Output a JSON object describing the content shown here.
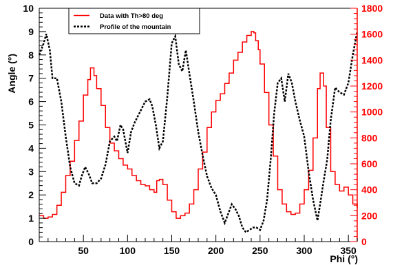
{
  "chart_data": {
    "type": "line",
    "xlabel": "Phi (°)",
    "ylabel": "Angle (°)",
    "xlim": [
      0,
      360
    ],
    "ylim": [
      0,
      10
    ],
    "y2lim": [
      0,
      1800
    ],
    "x_ticks": [
      50,
      100,
      150,
      200,
      250,
      300,
      350
    ],
    "y_ticks": [
      0,
      1,
      2,
      3,
      4,
      5,
      6,
      7,
      8,
      9,
      10
    ],
    "y2_ticks": [
      0,
      200,
      400,
      600,
      800,
      1000,
      1200,
      1400,
      1600,
      1800
    ],
    "grid": false,
    "legend_position": "top-left",
    "colors": {
      "data": "#ff0000",
      "profile": "#000000",
      "right_axis": "#ff0000"
    },
    "series": [
      {
        "name": "Data with Th>80 deg",
        "axis": "right",
        "style": "step",
        "x": [
          0,
          5,
          10,
          15,
          20,
          25,
          30,
          35,
          40,
          45,
          50,
          55,
          58,
          62,
          65,
          70,
          75,
          80,
          85,
          90,
          95,
          100,
          105,
          110,
          115,
          120,
          125,
          130,
          133,
          136,
          140,
          145,
          150,
          155,
          160,
          165,
          170,
          175,
          180,
          185,
          190,
          195,
          200,
          205,
          210,
          215,
          220,
          225,
          230,
          235,
          240,
          243,
          245,
          248,
          250,
          255,
          260,
          265,
          270,
          275,
          280,
          285,
          290,
          295,
          300,
          305,
          310,
          315,
          318,
          322,
          325,
          330,
          335,
          340,
          345,
          350,
          355,
          360
        ],
        "values": [
          200,
          180,
          190,
          210,
          280,
          380,
          510,
          620,
          780,
          930,
          1130,
          1250,
          1340,
          1280,
          1180,
          1050,
          880,
          760,
          700,
          640,
          590,
          560,
          510,
          470,
          440,
          430,
          400,
          380,
          470,
          480,
          440,
          320,
          230,
          180,
          200,
          220,
          290,
          400,
          560,
          690,
          880,
          1000,
          1090,
          1140,
          1220,
          1300,
          1400,
          1460,
          1540,
          1590,
          1620,
          1610,
          1550,
          1480,
          1370,
          1150,
          900,
          660,
          400,
          290,
          230,
          210,
          220,
          290,
          400,
          550,
          800,
          1180,
          1300,
          1200,
          880,
          540,
          440,
          390,
          420,
          360,
          290,
          260
        ]
      },
      {
        "name": "Profile of the mountain",
        "axis": "left",
        "style": "dashed",
        "x": [
          0,
          5,
          8,
          12,
          15,
          20,
          25,
          30,
          35,
          40,
          45,
          48,
          52,
          56,
          60,
          65,
          70,
          75,
          80,
          85,
          88,
          92,
          95,
          100,
          104,
          108,
          112,
          116,
          120,
          125,
          128,
          132,
          136,
          140,
          145,
          150,
          154,
          158,
          162,
          166,
          170,
          175,
          180,
          185,
          190,
          195,
          200,
          205,
          210,
          215,
          218,
          222,
          226,
          230,
          234,
          238,
          242,
          246,
          250,
          254,
          258,
          262,
          266,
          270,
          274,
          278,
          282,
          286,
          290,
          295,
          300,
          305,
          310,
          315,
          318,
          322,
          326,
          330,
          335,
          340,
          345,
          350,
          355,
          360
        ],
        "values": [
          8.0,
          8.5,
          8.9,
          8.2,
          7.0,
          7.0,
          6.0,
          4.5,
          3.2,
          2.5,
          2.4,
          2.8,
          3.2,
          2.9,
          2.5,
          2.5,
          2.7,
          3.3,
          4.3,
          4.5,
          4.3,
          5.0,
          4.8,
          3.8,
          4.7,
          5.1,
          5.4,
          5.7,
          6.0,
          6.1,
          5.8,
          5.0,
          4.0,
          4.3,
          6.2,
          8.5,
          8.8,
          7.6,
          7.3,
          8.2,
          7.2,
          6.0,
          4.7,
          3.7,
          2.8,
          2.3,
          2.0,
          1.3,
          0.8,
          1.3,
          1.6,
          1.4,
          1.1,
          0.6,
          0.4,
          0.5,
          0.6,
          0.6,
          0.5,
          0.9,
          1.8,
          3.5,
          5.5,
          6.8,
          7.0,
          6.0,
          7.2,
          6.8,
          6.0,
          5.2,
          4.5,
          3.0,
          1.8,
          0.9,
          1.6,
          2.6,
          3.5,
          5.2,
          6.6,
          6.4,
          6.3,
          6.8,
          8.0,
          9.0
        ]
      }
    ]
  }
}
